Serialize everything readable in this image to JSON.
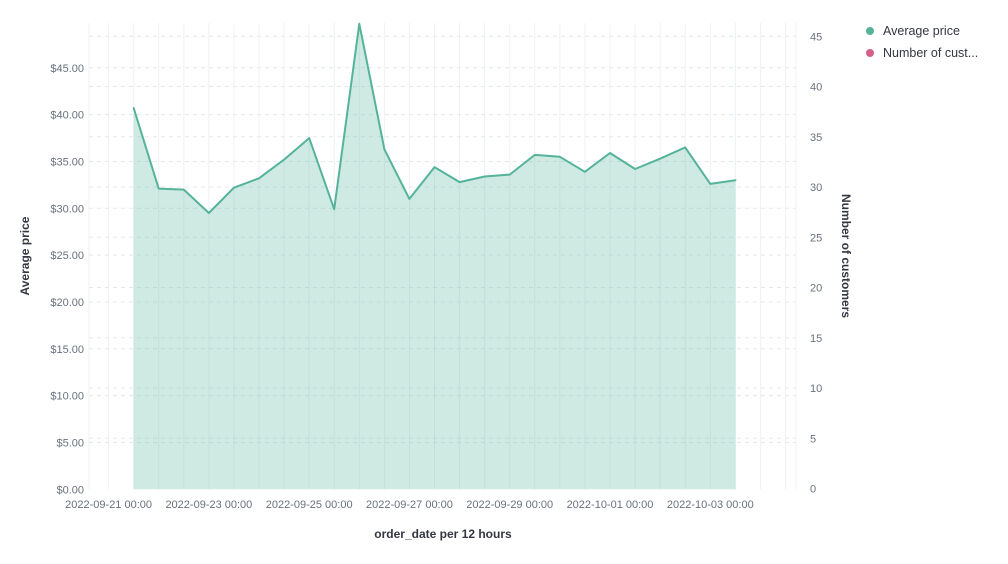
{
  "chart_data": {
    "type": "area",
    "xlabel": "order_date per 12 hours",
    "ylabel_left": "Average price",
    "ylabel_right": "Number of customers",
    "grid": true,
    "legend_position": "top-right",
    "left_axis": {
      "tick_labels": [
        "$0.00",
        "$5.00",
        "$10.00",
        "$15.00",
        "$20.00",
        "$25.00",
        "$30.00",
        "$35.00",
        "$40.00",
        "$45.00"
      ],
      "tick_values": [
        0,
        5,
        10,
        15,
        20,
        25,
        30,
        35,
        40,
        45
      ],
      "range": [
        0,
        49.8
      ]
    },
    "right_axis": {
      "tick_labels": [
        "0",
        "5",
        "10",
        "15",
        "20",
        "25",
        "30",
        "35",
        "40",
        "45"
      ],
      "tick_values": [
        0,
        5,
        10,
        15,
        20,
        25,
        30,
        35,
        40,
        45
      ],
      "range": [
        0,
        46.4
      ]
    },
    "x_tick_labels": [
      "2022-09-21 00:00",
      "2022-09-23 00:00",
      "2022-09-25 00:00",
      "2022-09-27 00:00",
      "2022-09-29 00:00",
      "2022-10-01 00:00",
      "2022-10-03 00:00"
    ],
    "x_bucket_hours": 12,
    "x": [
      "2022-09-21 12:00",
      "2022-09-22 00:00",
      "2022-09-22 12:00",
      "2022-09-23 00:00",
      "2022-09-23 12:00",
      "2022-09-24 00:00",
      "2022-09-24 12:00",
      "2022-09-25 00:00",
      "2022-09-25 12:00",
      "2022-09-26 00:00",
      "2022-09-26 12:00",
      "2022-09-27 00:00",
      "2022-09-27 12:00",
      "2022-09-28 00:00",
      "2022-09-28 12:00",
      "2022-09-29 00:00",
      "2022-09-29 12:00",
      "2022-09-30 00:00",
      "2022-09-30 12:00",
      "2022-10-01 00:00",
      "2022-10-01 12:00",
      "2022-10-02 00:00",
      "2022-10-02 12:00",
      "2022-10-03 00:00",
      "2022-10-03 12:00"
    ],
    "series": [
      {
        "name": "Average price",
        "axis": "left",
        "color": "#54B399",
        "fill": "rgba(84,179,153,0.28)",
        "values": [
          40.7,
          32.1,
          32.0,
          29.5,
          32.2,
          33.2,
          35.2,
          37.5,
          29.9,
          49.7,
          36.3,
          31.0,
          34.4,
          32.8,
          33.4,
          33.6,
          35.7,
          35.5,
          33.9,
          35.9,
          34.2,
          35.3,
          36.5,
          32.6,
          33.0
        ]
      },
      {
        "name": "Number of customers",
        "axis": "right",
        "color": "#D36086",
        "values": []
      }
    ],
    "legend": [
      {
        "label": "Average price",
        "color": "#54B399"
      },
      {
        "label": "Number of cust...",
        "color": "#D36086"
      }
    ],
    "colors": {
      "tick_text": "#69707D",
      "axis_title_text": "#343741",
      "grid_dashed": "#e5e8ec",
      "grid_vertical": "#eef1f4"
    }
  }
}
